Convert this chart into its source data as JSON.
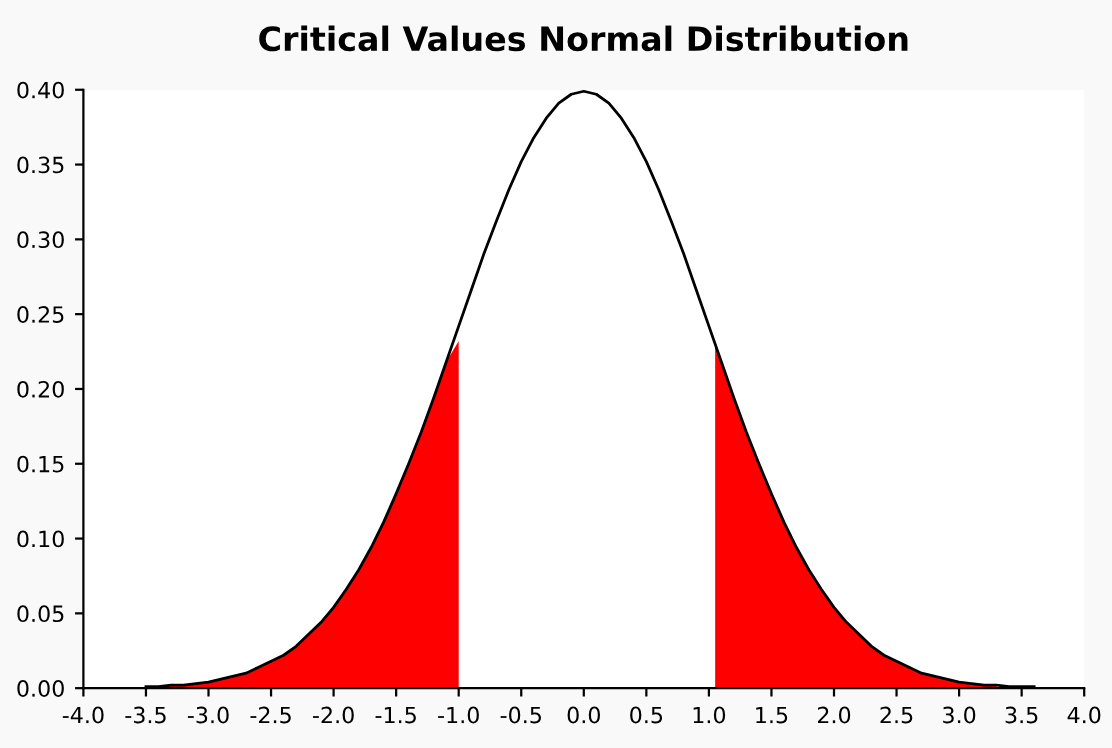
{
  "chart_data": {
    "type": "line",
    "title": "Critical Values Normal Distribution",
    "series": [
      {
        "type": "area",
        "color": "#ff0000",
        "x": [
          -3.5,
          -3.4,
          -3.3,
          -3.2,
          -3.1,
          -3.0,
          -2.9,
          -2.8,
          -2.7,
          -2.6,
          -2.5,
          -2.4,
          -2.3,
          -2.2,
          -2.1,
          -2.0,
          -1.9,
          -1.8,
          -1.7,
          -1.6,
          -1.5,
          -1.4,
          -1.3,
          -1.2,
          -1.1,
          -1.0
        ],
        "values": [
          0.001,
          0.001,
          0.002,
          0.002,
          0.003,
          0.004,
          0.006,
          0.008,
          0.01,
          0.014,
          0.018,
          0.022,
          0.028,
          0.036,
          0.044,
          0.054,
          0.066,
          0.079,
          0.094,
          0.111,
          0.13,
          0.15,
          0.171,
          0.194,
          0.218,
          0.232
        ]
      },
      {
        "type": "area",
        "color": "#ff0000",
        "x": [
          1.05,
          1.1,
          1.2,
          1.3,
          1.4,
          1.5,
          1.6,
          1.7,
          1.8,
          1.9,
          2.0,
          2.1,
          2.2,
          2.3,
          2.4,
          2.5,
          2.6,
          2.7,
          2.8,
          2.9,
          3.0,
          3.1,
          3.2,
          3.3
        ],
        "values": [
          0.23,
          0.218,
          0.194,
          0.171,
          0.15,
          0.13,
          0.111,
          0.094,
          0.079,
          0.066,
          0.054,
          0.044,
          0.036,
          0.028,
          0.022,
          0.018,
          0.014,
          0.01,
          0.008,
          0.006,
          0.004,
          0.003,
          0.002,
          0.002
        ]
      },
      {
        "color": "#000000",
        "x": [
          -3.5,
          -3.4,
          -3.3,
          -3.2,
          -3.1,
          -3.0,
          -2.9,
          -2.8,
          -2.7,
          -2.6,
          -2.5,
          -2.4,
          -2.3,
          -2.2,
          -2.1,
          -2.0,
          -1.9,
          -1.8,
          -1.7,
          -1.6,
          -1.5,
          -1.4,
          -1.3,
          -1.2,
          -1.1,
          -1.0,
          -0.9,
          -0.8,
          -0.7,
          -0.6,
          -0.5,
          -0.4,
          -0.3,
          -0.2,
          -0.1,
          0.0,
          0.1,
          0.2,
          0.3,
          0.4,
          0.5,
          0.6,
          0.7,
          0.8,
          0.9,
          1.0,
          1.1,
          1.2,
          1.3,
          1.4,
          1.5,
          1.6,
          1.7,
          1.8,
          1.9,
          2.0,
          2.1,
          2.2,
          2.3,
          2.4,
          2.5,
          2.6,
          2.7,
          2.8,
          2.9,
          3.0,
          3.1,
          3.2,
          3.3,
          3.4,
          3.5,
          3.6
        ],
        "values": [
          0.001,
          0.001,
          0.002,
          0.002,
          0.003,
          0.004,
          0.006,
          0.008,
          0.01,
          0.014,
          0.018,
          0.022,
          0.028,
          0.036,
          0.044,
          0.054,
          0.066,
          0.079,
          0.094,
          0.111,
          0.13,
          0.15,
          0.171,
          0.194,
          0.218,
          0.242,
          0.266,
          0.29,
          0.312,
          0.333,
          0.352,
          0.368,
          0.381,
          0.391,
          0.397,
          0.399,
          0.397,
          0.391,
          0.381,
          0.368,
          0.352,
          0.333,
          0.312,
          0.29,
          0.266,
          0.242,
          0.218,
          0.194,
          0.171,
          0.15,
          0.13,
          0.111,
          0.094,
          0.079,
          0.066,
          0.054,
          0.044,
          0.036,
          0.028,
          0.022,
          0.018,
          0.014,
          0.01,
          0.008,
          0.006,
          0.004,
          0.003,
          0.002,
          0.002,
          0.001,
          0.001,
          0.001
        ]
      }
    ],
    "xlim": [
      -4.0,
      4.0
    ],
    "xticks": [
      {
        "value": -4,
        "label": "-4.0"
      },
      {
        "value": -3.5,
        "label": "-3.5"
      },
      {
        "value": -3,
        "label": "-3.0"
      },
      {
        "value": -2.5,
        "label": "-2.5"
      },
      {
        "value": -2,
        "label": "-2.0"
      },
      {
        "value": -1.5,
        "label": "-1.5"
      },
      {
        "value": -1,
        "label": "-1.0"
      },
      {
        "value": -0.5,
        "label": "-0.5"
      },
      {
        "value": 0,
        "label": "0.0"
      },
      {
        "value": 0.5,
        "label": "0.5"
      },
      {
        "value": 1,
        "label": "1.0"
      },
      {
        "value": 1.5,
        "label": "1.5"
      },
      {
        "value": 2,
        "label": "2.0"
      },
      {
        "value": 2.5,
        "label": "2.5"
      },
      {
        "value": 3,
        "label": "3.0"
      },
      {
        "value": 3.5,
        "label": "3.5"
      },
      {
        "value": 4,
        "label": "4.0"
      }
    ],
    "ylim": [
      0.0,
      0.4
    ],
    "yticks": [
      {
        "value": 0,
        "label": "0.00"
      },
      {
        "value": 0.05,
        "label": "0.05"
      },
      {
        "value": 0.1,
        "label": "0.10"
      },
      {
        "value": 0.15,
        "label": "0.15"
      },
      {
        "value": 0.2,
        "label": "0.20"
      },
      {
        "value": 0.25,
        "label": "0.25"
      },
      {
        "value": 0.3,
        "label": "0.30"
      },
      {
        "value": 0.35,
        "label": "0.35"
      },
      {
        "value": 0.4,
        "label": "0.40"
      }
    ],
    "grid": false,
    "marker": "none",
    "line_style": "solid"
  }
}
